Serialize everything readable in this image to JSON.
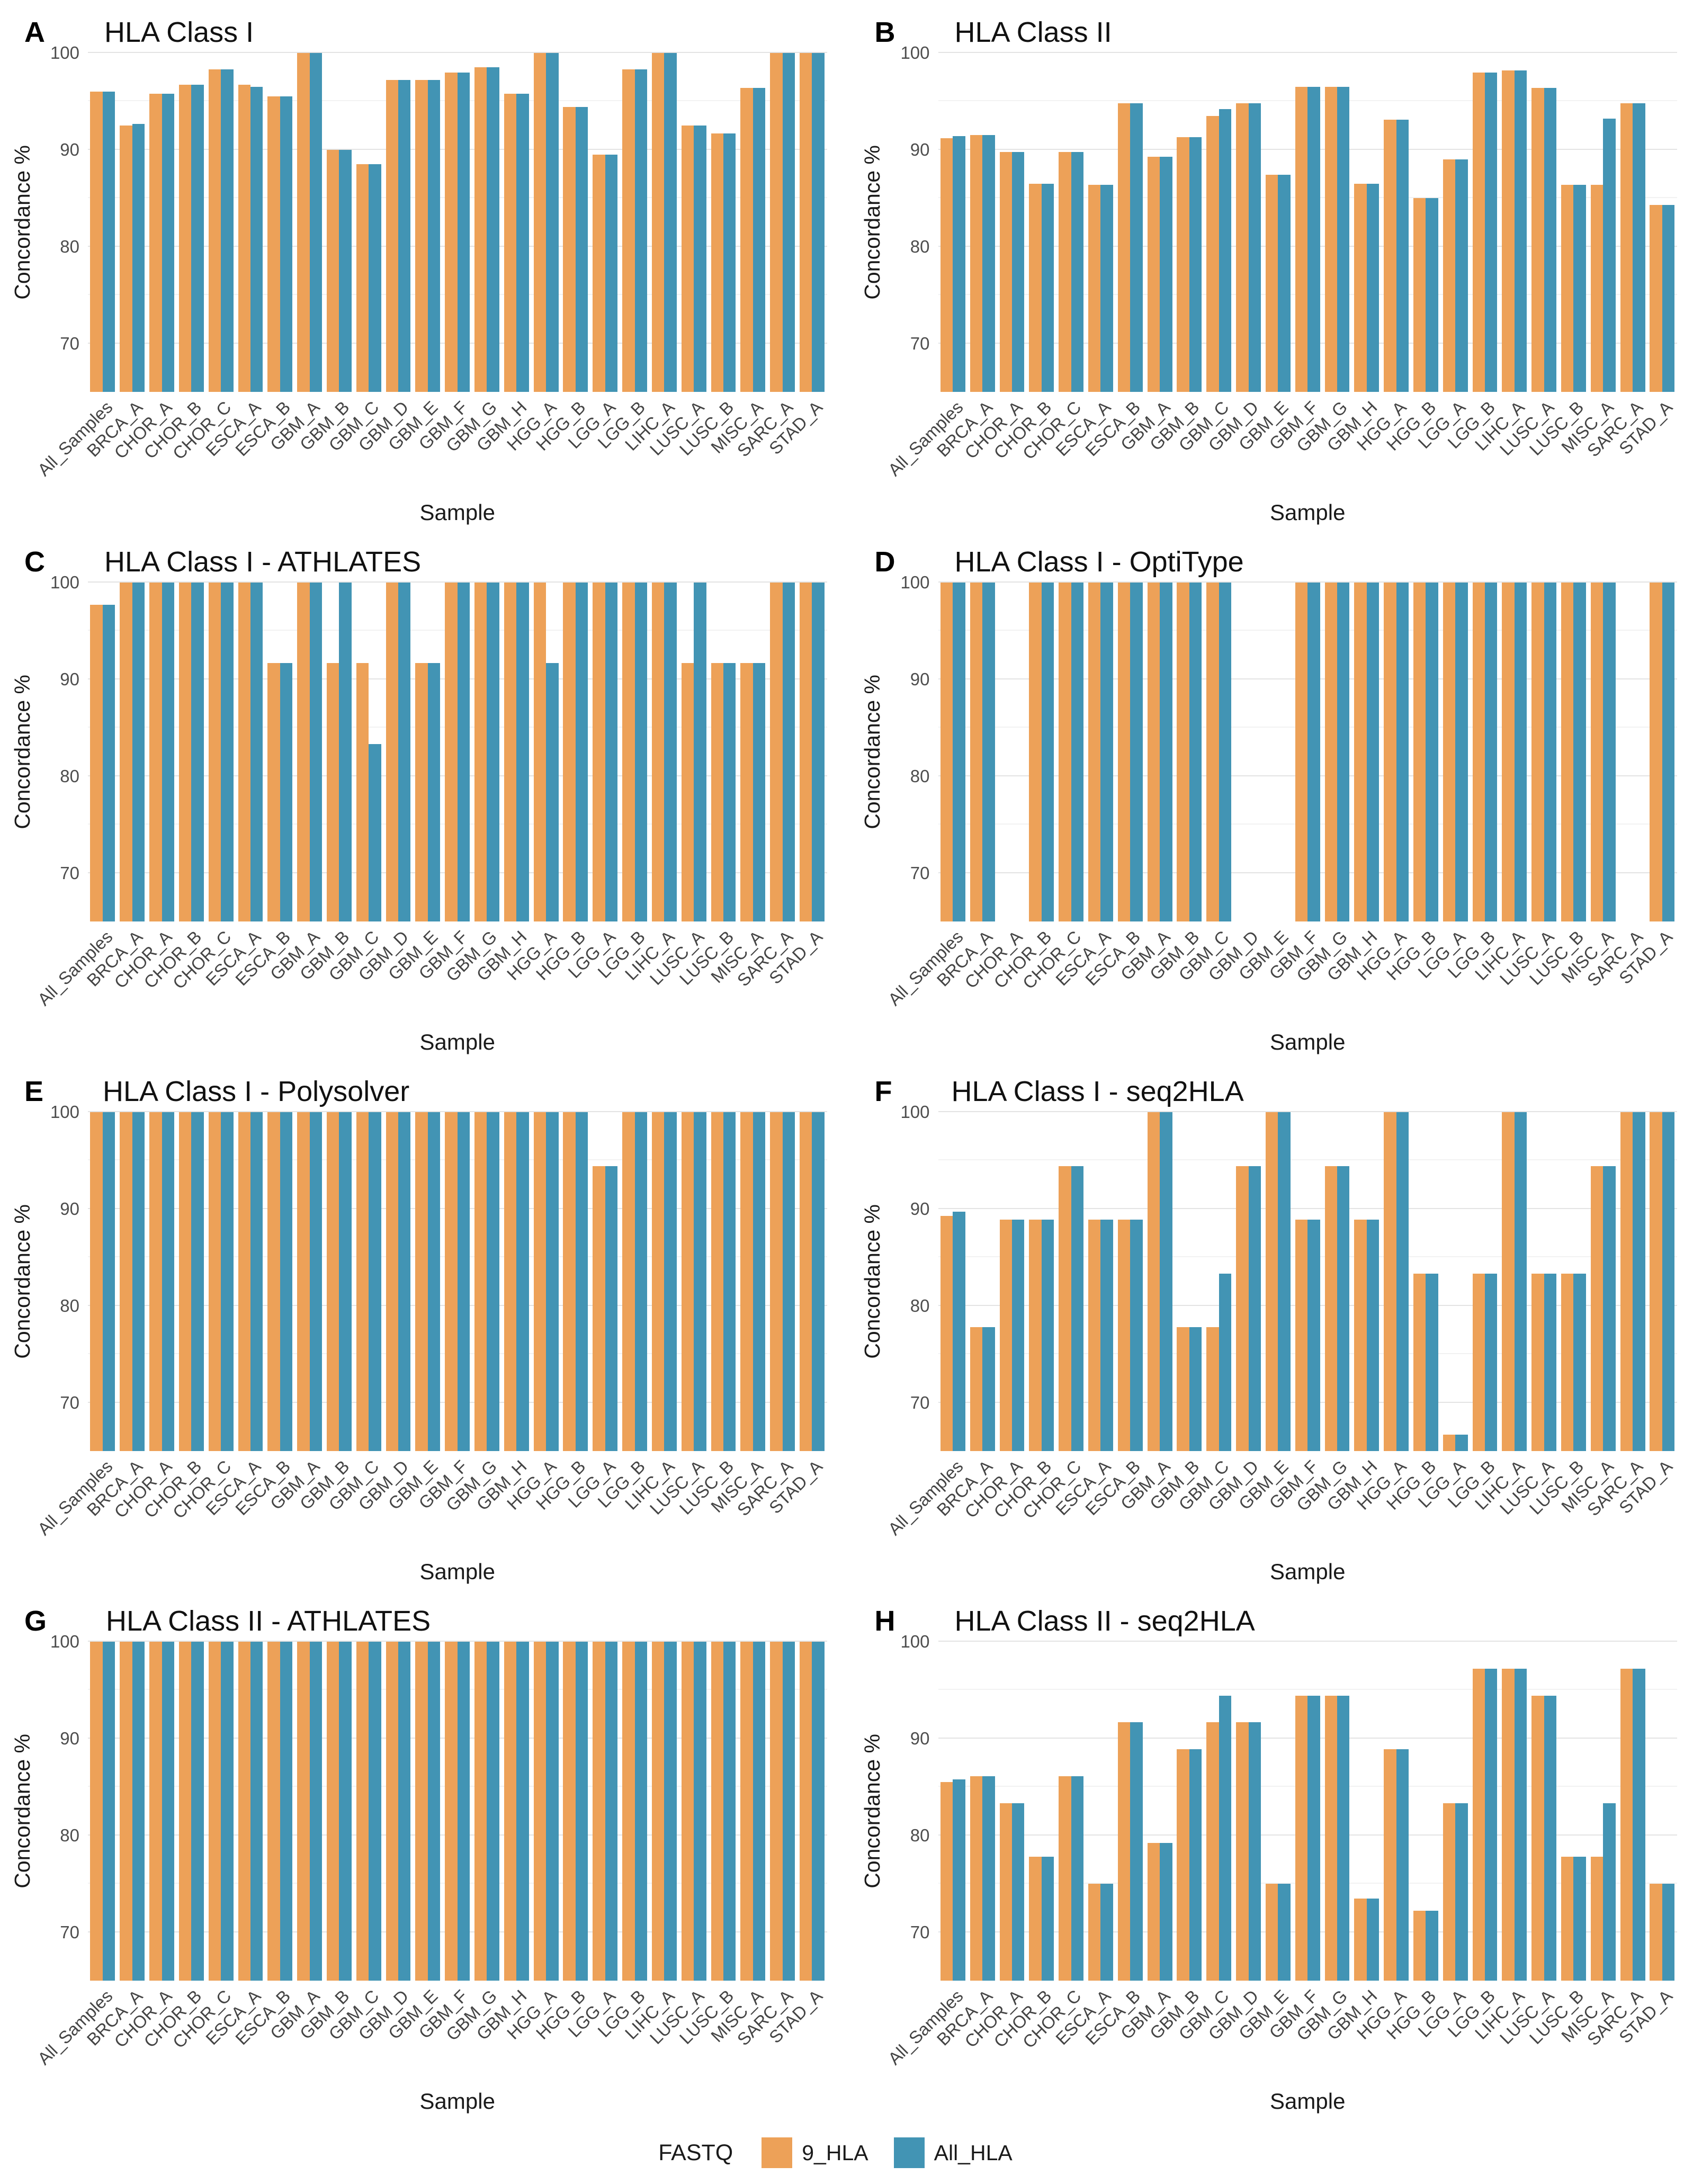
{
  "chart_data": {
    "type": "bar",
    "grouping": "grouped",
    "xlabel": "Sample",
    "ylabel": "Concordance %",
    "ylim": [
      65,
      100
    ],
    "yticks": [
      70,
      80,
      90,
      100
    ],
    "yticks_minor": [
      75,
      85,
      95
    ],
    "grid": "on",
    "legend": {
      "title": "FASTQ",
      "position": "bottom",
      "items": [
        {
          "label": "9_HLA",
          "color": "#EDA158"
        },
        {
          "label": "All_HLA",
          "color": "#4294B4"
        }
      ]
    },
    "categories": [
      "All_Samples",
      "BRCA_A",
      "CHOR_A",
      "CHOR_B",
      "CHOR_C",
      "ESCA_A",
      "ESCA_B",
      "GBM_A",
      "GBM_B",
      "GBM_C",
      "GBM_D",
      "GBM_E",
      "GBM_F",
      "GBM_G",
      "GBM_H",
      "HGG_A",
      "HGG_B",
      "LGG_A",
      "LGG_B",
      "LIHC_A",
      "LUSC_A",
      "LUSC_B",
      "MISC_A",
      "SARC_A",
      "STAD_A"
    ],
    "panels": [
      {
        "letter": "A",
        "title": "HLA Class I",
        "series": [
          {
            "name": "9_HLA",
            "values": [
              96.0,
              92.5,
              95.8,
              96.7,
              98.3,
              96.7,
              95.5,
              100,
              90.0,
              88.5,
              97.2,
              97.2,
              98.0,
              98.5,
              95.8,
              100,
              94.4,
              89.5,
              98.3,
              100,
              92.5,
              91.7,
              96.4,
              100,
              100
            ]
          },
          {
            "name": "All_HLA",
            "values": [
              96.0,
              92.7,
              95.8,
              96.7,
              98.3,
              96.5,
              95.5,
              100,
              90.0,
              88.5,
              97.2,
              97.2,
              98.0,
              98.5,
              95.8,
              100,
              94.4,
              89.5,
              98.3,
              100,
              92.5,
              91.7,
              96.4,
              100,
              100
            ]
          }
        ]
      },
      {
        "letter": "B",
        "title": "HLA Class II",
        "series": [
          {
            "name": "9_HLA",
            "values": [
              91.2,
              91.5,
              89.8,
              86.5,
              89.8,
              86.4,
              94.8,
              89.3,
              91.3,
              93.5,
              94.8,
              87.4,
              96.5,
              96.5,
              86.5,
              93.1,
              85.0,
              89.0,
              98.0,
              98.2,
              96.4,
              86.4,
              86.4,
              94.8,
              84.3
            ]
          },
          {
            "name": "All_HLA",
            "values": [
              91.4,
              91.5,
              89.8,
              86.5,
              89.8,
              86.4,
              94.8,
              89.3,
              91.3,
              94.2,
              94.8,
              87.4,
              96.5,
              96.5,
              86.5,
              93.1,
              85.0,
              89.0,
              98.0,
              98.2,
              96.4,
              86.4,
              93.2,
              94.8,
              84.3
            ]
          }
        ]
      },
      {
        "letter": "C",
        "title": "HLA Class I - ATHLATES",
        "series": [
          {
            "name": "9_HLA",
            "values": [
              97.7,
              100,
              100,
              100,
              100,
              100,
              91.7,
              100,
              91.7,
              91.7,
              100,
              91.7,
              100,
              100,
              100,
              100,
              100,
              100,
              100,
              100,
              91.7,
              91.7,
              91.7,
              100,
              100
            ]
          },
          {
            "name": "All_HLA",
            "values": [
              97.7,
              100,
              100,
              100,
              100,
              100,
              91.7,
              100,
              100,
              83.3,
              100,
              91.7,
              100,
              100,
              100,
              91.7,
              100,
              100,
              100,
              100,
              100,
              91.7,
              91.7,
              100,
              100
            ]
          }
        ]
      },
      {
        "letter": "D",
        "title": "HLA Class I - OptiType",
        "series": [
          {
            "name": "9_HLA",
            "values": [
              100,
              100,
              null,
              100,
              100,
              100,
              100,
              100,
              100,
              100,
              null,
              null,
              100,
              100,
              100,
              100,
              100,
              100,
              100,
              100,
              100,
              100,
              100,
              null,
              100
            ]
          },
          {
            "name": "All_HLA",
            "values": [
              100,
              100,
              null,
              100,
              100,
              100,
              100,
              100,
              100,
              100,
              null,
              null,
              100,
              100,
              100,
              100,
              100,
              100,
              100,
              100,
              100,
              100,
              100,
              null,
              100
            ]
          }
        ]
      },
      {
        "letter": "E",
        "title": "HLA Class I - Polysolver",
        "series": [
          {
            "name": "9_HLA",
            "values": [
              100,
              100,
              100,
              100,
              100,
              100,
              100,
              100,
              100,
              100,
              100,
              100,
              100,
              100,
              100,
              100,
              100,
              94.4,
              100,
              100,
              100,
              100,
              100,
              100,
              100
            ]
          },
          {
            "name": "All_HLA",
            "values": [
              100,
              100,
              100,
              100,
              100,
              100,
              100,
              100,
              100,
              100,
              100,
              100,
              100,
              100,
              100,
              100,
              100,
              94.4,
              100,
              100,
              100,
              100,
              100,
              100,
              100
            ]
          }
        ]
      },
      {
        "letter": "F",
        "title": "HLA Class I - seq2HLA",
        "series": [
          {
            "name": "9_HLA",
            "values": [
              89.3,
              77.8,
              88.9,
              88.9,
              94.4,
              88.9,
              88.9,
              100,
              77.8,
              77.8,
              94.4,
              100,
              88.9,
              94.4,
              88.9,
              100,
              83.3,
              66.7,
              83.3,
              100,
              83.3,
              83.3,
              94.4,
              100,
              100
            ]
          },
          {
            "name": "All_HLA",
            "values": [
              89.7,
              77.8,
              88.9,
              88.9,
              94.4,
              88.9,
              88.9,
              100,
              77.8,
              83.3,
              94.4,
              100,
              88.9,
              94.4,
              88.9,
              100,
              83.3,
              66.7,
              83.3,
              100,
              83.3,
              83.3,
              94.4,
              100,
              100
            ]
          }
        ]
      },
      {
        "letter": "G",
        "title": "HLA Class II - ATHLATES",
        "series": [
          {
            "name": "9_HLA",
            "values": [
              100,
              100,
              100,
              100,
              100,
              100,
              100,
              100,
              100,
              100,
              100,
              100,
              100,
              100,
              100,
              100,
              100,
              100,
              100,
              100,
              100,
              100,
              100,
              100,
              100
            ]
          },
          {
            "name": "All_HLA",
            "values": [
              100,
              100,
              100,
              100,
              100,
              100,
              100,
              100,
              100,
              100,
              100,
              100,
              100,
              100,
              100,
              100,
              100,
              100,
              100,
              100,
              100,
              100,
              100,
              100,
              100
            ]
          }
        ]
      },
      {
        "letter": "H",
        "title": "HLA Class II - seq2HLA",
        "series": [
          {
            "name": "9_HLA",
            "values": [
              85.5,
              86.1,
              83.3,
              77.8,
              86.1,
              75.0,
              91.7,
              79.2,
              88.9,
              91.7,
              91.7,
              75.0,
              94.4,
              94.4,
              73.5,
              88.9,
              72.2,
              83.3,
              97.2,
              97.2,
              94.4,
              77.8,
              77.8,
              97.2,
              75.0
            ]
          },
          {
            "name": "All_HLA",
            "values": [
              85.8,
              86.1,
              83.3,
              77.8,
              86.1,
              75.0,
              91.7,
              79.2,
              88.9,
              94.4,
              91.7,
              75.0,
              94.4,
              94.4,
              73.5,
              88.9,
              72.2,
              83.3,
              97.2,
              97.2,
              94.4,
              77.8,
              83.3,
              97.2,
              75.0
            ]
          }
        ]
      }
    ]
  }
}
